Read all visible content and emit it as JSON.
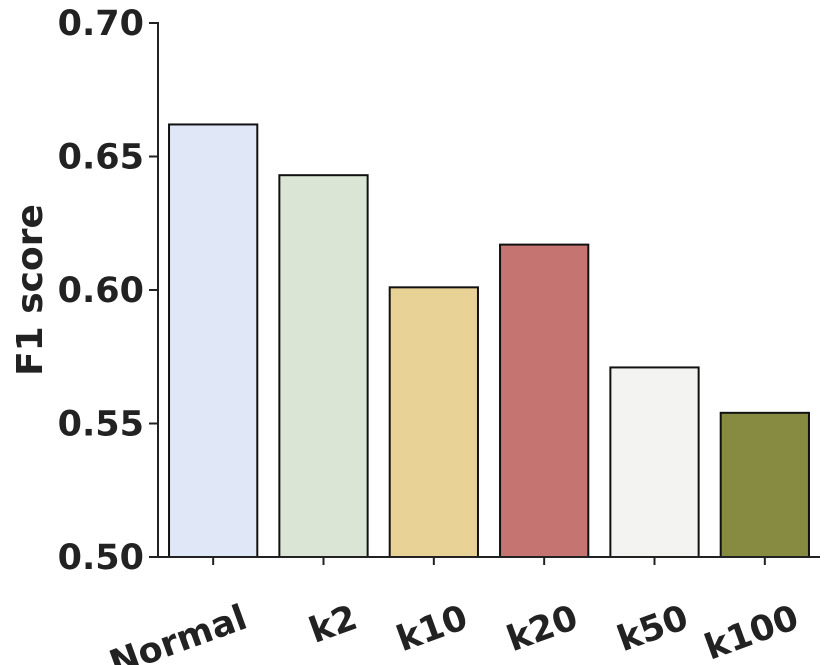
{
  "chart_data": {
    "type": "bar",
    "y_label": "F1 score",
    "categories": [
      "Normal",
      "k2",
      "k10",
      "k20",
      "k50",
      "k100"
    ],
    "values": [
      0.662,
      0.643,
      0.601,
      0.617,
      0.571,
      0.554
    ],
    "colors": [
      "#e0e7f7",
      "#dae5d6",
      "#e9d296",
      "#c57471",
      "#f3f3f1",
      "#878b41"
    ],
    "ylim": [
      0.5,
      0.7
    ],
    "yticks": [
      {
        "value": 0.5,
        "label": "0.50"
      },
      {
        "value": 0.55,
        "label": "0.55"
      },
      {
        "value": 0.6,
        "label": "0.60"
      },
      {
        "value": 0.65,
        "label": "0.65"
      },
      {
        "value": 0.7,
        "label": "0.70"
      }
    ],
    "grid": false
  }
}
